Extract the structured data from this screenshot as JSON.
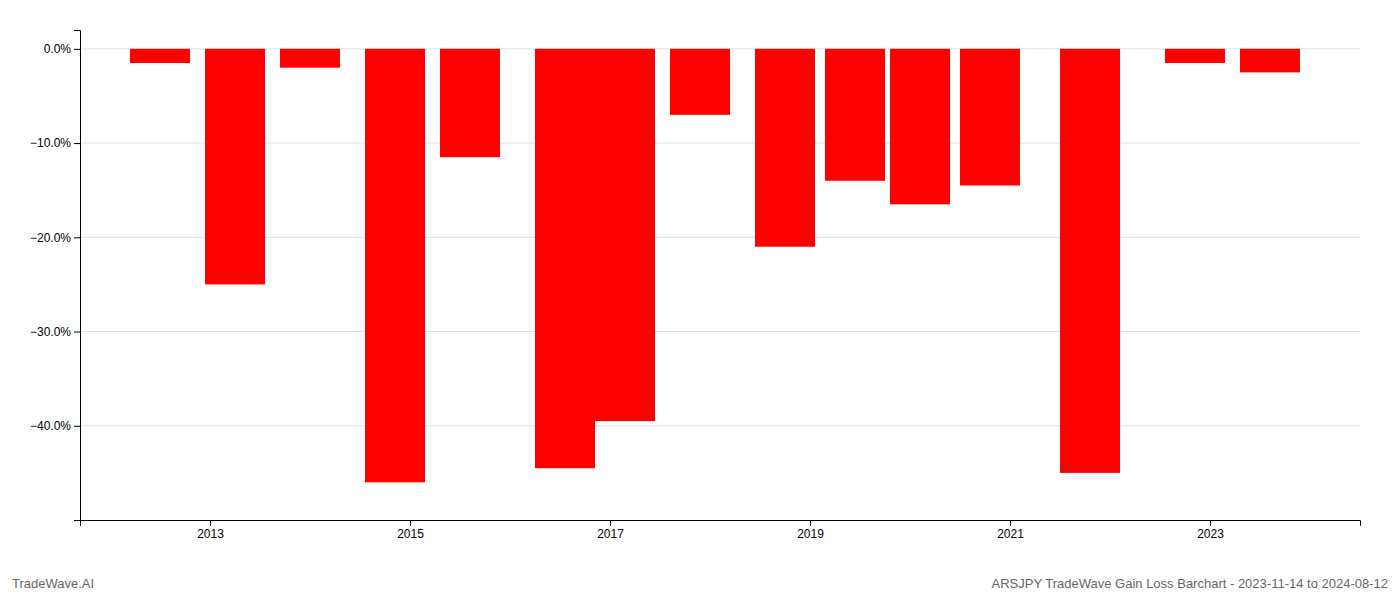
{
  "chart_data": {
    "type": "bar",
    "x": [
      2012.5,
      2013.25,
      2014.0,
      2014.85,
      2015.6,
      2016.55,
      2017.15,
      2017.9,
      2018.75,
      2019.45,
      2020.1,
      2020.8,
      2021.8,
      2022.85,
      2023.6
    ],
    "values": [
      -1.5,
      -25.0,
      -2.0,
      -46.0,
      -11.5,
      -44.5,
      -39.5,
      -7.0,
      -21.0,
      -14.0,
      -16.5,
      -14.5,
      -45.0,
      -1.5,
      -2.5
    ],
    "color": "#ff0000",
    "xlim": [
      2011.7,
      2024.5
    ],
    "xticks": [
      2013,
      2015,
      2017,
      2019,
      2021,
      2023
    ],
    "ylim": [
      -50,
      2
    ],
    "yticks": [
      {
        "value": 0.0,
        "label": "0.0%"
      },
      {
        "value": -10.0,
        "label": "−10.0%"
      },
      {
        "value": -20.0,
        "label": "−20.0%"
      },
      {
        "value": -30.0,
        "label": "−30.0%"
      },
      {
        "value": -40.0,
        "label": "−40.0%"
      }
    ],
    "grid": true,
    "annotations": [
      "TradeWave.AI",
      "ARSJPY TradeWave Gain Loss Barchart - 2023-11-14 to 2024-08-12"
    ]
  }
}
